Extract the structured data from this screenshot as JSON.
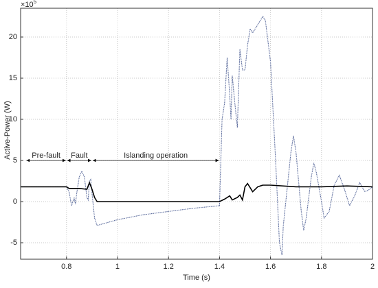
{
  "chart_data": {
    "type": "line",
    "x_label": "Time (s)",
    "y_label": "Active-Power (W)",
    "y_multiplier": {
      "base": "×10",
      "exponent": "5"
    },
    "xlim": [
      0.62,
      2
    ],
    "ylim": [
      -7,
      23.5
    ],
    "xticks": [
      0.8,
      1,
      1.2,
      1.4,
      1.6,
      1.8,
      2
    ],
    "yticks": [
      -5,
      0,
      5,
      10,
      15,
      20
    ],
    "grid": true,
    "series": [
      {
        "color": "#5b6b9c",
        "dash": "dotted",
        "x": [
          0.62,
          0.8,
          0.81,
          0.82,
          0.83,
          0.835,
          0.84,
          0.85,
          0.86,
          0.87,
          0.88,
          0.885,
          0.89,
          0.895,
          0.9,
          0.91,
          0.92,
          1.0,
          1.1,
          1.2,
          1.3,
          1.4,
          1.41,
          1.42,
          1.43,
          1.44,
          1.445,
          1.45,
          1.46,
          1.47,
          1.48,
          1.49,
          1.5,
          1.51,
          1.52,
          1.53,
          1.55,
          1.57,
          1.58,
          1.6,
          1.62,
          1.635,
          1.645,
          1.65,
          1.66,
          1.68,
          1.69,
          1.7,
          1.72,
          1.73,
          1.74,
          1.76,
          1.77,
          1.78,
          1.8,
          1.81,
          1.83,
          1.85,
          1.87,
          1.89,
          1.91,
          1.93,
          1.95,
          1.97,
          1.99,
          2.0
        ],
        "values": [
          1.8,
          1.8,
          1.2,
          -0.5,
          0.5,
          -0.3,
          1.0,
          3.0,
          3.7,
          3.0,
          0.5,
          0.2,
          2.5,
          2.7,
          1.0,
          -2.0,
          -2.9,
          -2.2,
          -1.6,
          -1.2,
          -0.8,
          -0.5,
          10,
          12,
          17.5,
          13,
          10,
          15.3,
          12,
          9,
          18.5,
          16,
          16,
          19,
          21,
          20.5,
          21.5,
          22.5,
          22,
          17,
          5,
          -5,
          -6.5,
          -3,
          0,
          6,
          8,
          6,
          -1,
          -3.5,
          -2,
          3,
          4.7,
          3.5,
          0,
          -2,
          -1.2,
          2,
          3.2,
          1.5,
          -0.5,
          0.7,
          2.3,
          1.2,
          1.5,
          1.8
        ]
      },
      {
        "color": "#000000",
        "dash": "solid",
        "x": [
          0.62,
          0.8,
          0.81,
          0.85,
          0.88,
          0.89,
          0.9,
          0.91,
          0.92,
          1.4,
          1.42,
          1.44,
          1.45,
          1.47,
          1.48,
          1.49,
          1.5,
          1.51,
          1.53,
          1.55,
          1.57,
          1.6,
          1.7,
          1.8,
          1.9,
          2.0
        ],
        "values": [
          1.8,
          1.8,
          1.6,
          1.6,
          1.5,
          2.3,
          1.5,
          0.5,
          0,
          0,
          0.3,
          0.7,
          0.2,
          0.5,
          0.8,
          0.2,
          1.8,
          2.2,
          1.2,
          1.8,
          2.0,
          2.0,
          1.8,
          1.8,
          1.9,
          1.8
        ]
      }
    ],
    "annotations": [
      {
        "text": "Pre-fault",
        "start": 0.64,
        "end": 0.8,
        "y": 5
      },
      {
        "text": "Fault",
        "start": 0.8,
        "end": 0.9,
        "y": 5
      },
      {
        "text": "Islanding operation",
        "start": 0.9,
        "end": 1.4,
        "y": 5
      }
    ]
  }
}
